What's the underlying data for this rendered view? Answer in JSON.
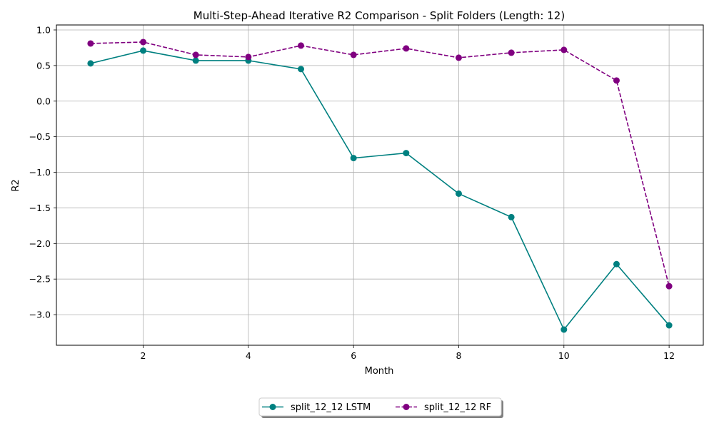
{
  "chart_data": {
    "type": "line",
    "title": "Multi-Step-Ahead Iterative R2 Comparison - Split Folders (Length: 12)",
    "xlabel": "Month",
    "ylabel": "R2",
    "xlim": [
      0.35,
      12.65
    ],
    "ylim": [
      -3.43,
      1.07
    ],
    "xticks": [
      "2",
      "4",
      "6",
      "8",
      "10",
      "12"
    ],
    "yticks": [
      "1.0",
      "0.5",
      "0.0",
      "−0.5",
      "−1.0",
      "−1.5",
      "−2.0",
      "−2.5",
      "−3.0"
    ],
    "grid": true,
    "legend_position": "bottom-center",
    "x": [
      1,
      2,
      3,
      4,
      5,
      6,
      7,
      8,
      9,
      10,
      11,
      12
    ],
    "series": [
      {
        "name": "split_12_12 LSTM",
        "color": "#008080",
        "linestyle": "solid",
        "marker": "circle",
        "values": [
          0.53,
          0.71,
          0.57,
          0.57,
          0.45,
          -0.8,
          -0.73,
          -1.3,
          -1.63,
          -3.21,
          -2.29,
          -3.15
        ]
      },
      {
        "name": "split_12_12 RF",
        "color": "#800080",
        "linestyle": "dashed",
        "marker": "circle",
        "values": [
          0.81,
          0.83,
          0.65,
          0.62,
          0.78,
          0.65,
          0.74,
          0.61,
          0.68,
          0.72,
          0.29,
          -2.6
        ]
      }
    ]
  }
}
